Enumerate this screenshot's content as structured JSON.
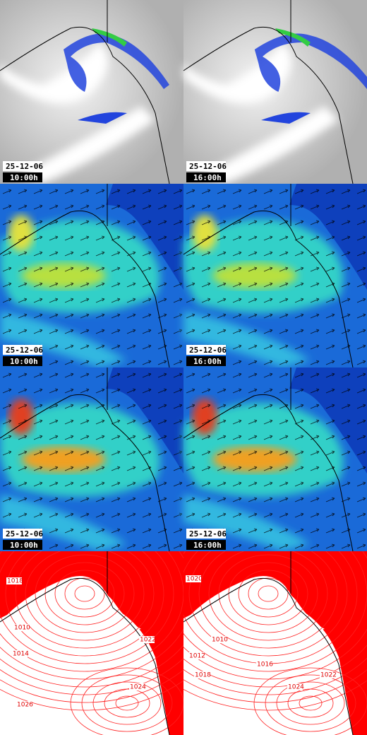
{
  "panels": [
    {
      "date": "25-12-06",
      "time": "10:00h"
    },
    {
      "date": "25-12-06",
      "time": "16:00h"
    },
    {
      "date": "25-12-06",
      "time": "10:00h"
    },
    {
      "date": "25-12-06",
      "time": "16:00h"
    },
    {
      "date": "25-12-06",
      "time": "10:00h"
    },
    {
      "date": "25-12-06",
      "time": "16:00h"
    }
  ],
  "pressure_panels": [
    {
      "labels": [
        "1018",
        "1014",
        "1022",
        "1026",
        "1024",
        "1010"
      ]
    },
    {
      "labels": [
        "1020",
        "1010",
        "1012",
        "1018",
        "1016",
        "1024",
        "1022"
      ]
    }
  ]
}
